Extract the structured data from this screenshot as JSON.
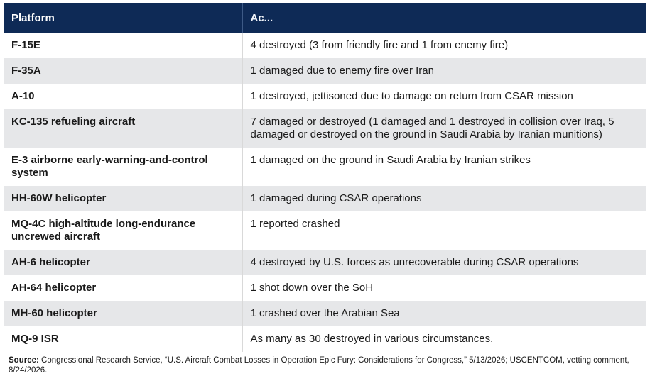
{
  "table": {
    "headers": [
      "Platform",
      "Ac..."
    ],
    "rows": [
      {
        "platform": "F-15E",
        "detail": "4 destroyed (3 from friendly fire and 1 from enemy fire)"
      },
      {
        "platform": "F-35A",
        "detail": "1 damaged due to enemy fire over Iran"
      },
      {
        "platform": "A-10",
        "detail": "1 destroyed, jettisoned due to damage on return from CSAR mission"
      },
      {
        "platform": "KC-135 refueling aircraft",
        "detail": "7 damaged or destroyed (1 damaged and 1 destroyed in collision over Iraq, 5 damaged or destroyed on the ground in Saudi Arabia by Iranian munitions)"
      },
      {
        "platform": "E-3 airborne early-warning-and-control system",
        "detail": "1 damaged on the ground in Saudi Arabia by Iranian strikes"
      },
      {
        "platform": "HH-60W helicopter",
        "detail": "1 damaged during CSAR operations"
      },
      {
        "platform": "MQ-4C high-altitude long-endurance uncrewed aircraft",
        "detail": "1 reported crashed"
      },
      {
        "platform": "AH-6 helicopter",
        "detail": "4 destroyed by U.S. forces as unrecoverable during CSAR operations"
      },
      {
        "platform": "AH-64 helicopter",
        "detail": "1 shot down over the SoH"
      },
      {
        "platform": "MH-60 helicopter",
        "detail": "1 crashed over the Arabian Sea"
      },
      {
        "platform": "MQ-9 ISR",
        "detail": "As many as 30 destroyed in various circumstances."
      }
    ]
  },
  "source": {
    "label": "Source:",
    "text": " Congressional Research Service, “U.S. Aircraft Combat Losses in Operation Epic Fury: Considerations for Congress,” 5/13/2026; USCENTCOM, vetting comment, 8/24/2026."
  },
  "colors": {
    "header_bg": "#0e2a56",
    "stripe": "#e6e7e9"
  }
}
